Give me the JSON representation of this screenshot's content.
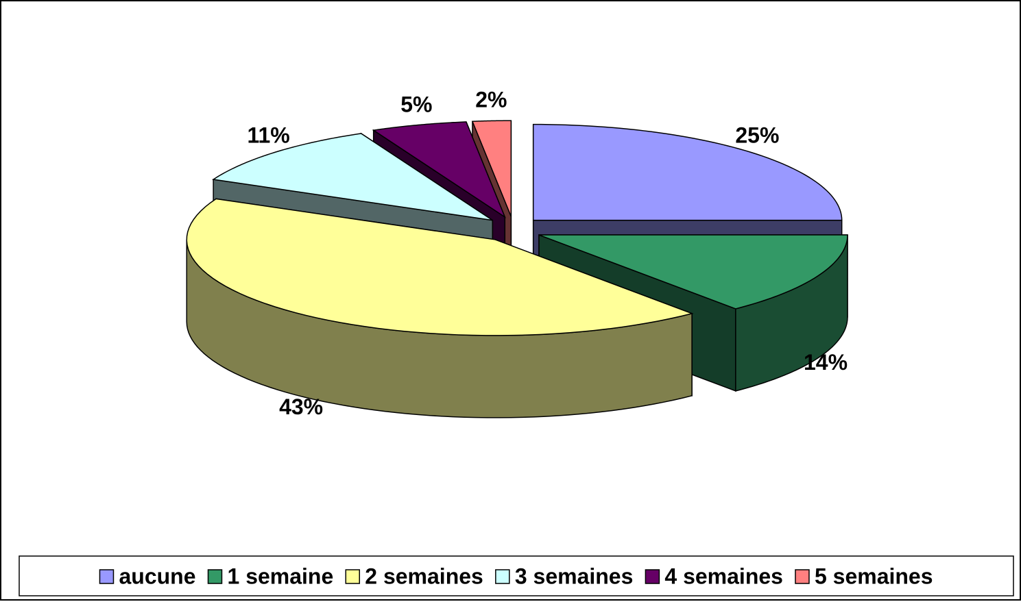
{
  "chart_data": {
    "type": "pie3d",
    "categories": [
      "aucune",
      "1 semaine",
      "2 semaines",
      "3 semaines",
      "4 semaines",
      "5 semaines"
    ],
    "values": [
      25,
      14,
      43,
      11,
      5,
      2
    ],
    "value_labels": [
      "25%",
      "14%",
      "43%",
      "11%",
      "5%",
      "2%"
    ],
    "colors": [
      "#9999ff",
      "#339966",
      "#ffff99",
      "#ccffff",
      "#660066",
      "#ff8080"
    ],
    "legend": "bottom"
  }
}
